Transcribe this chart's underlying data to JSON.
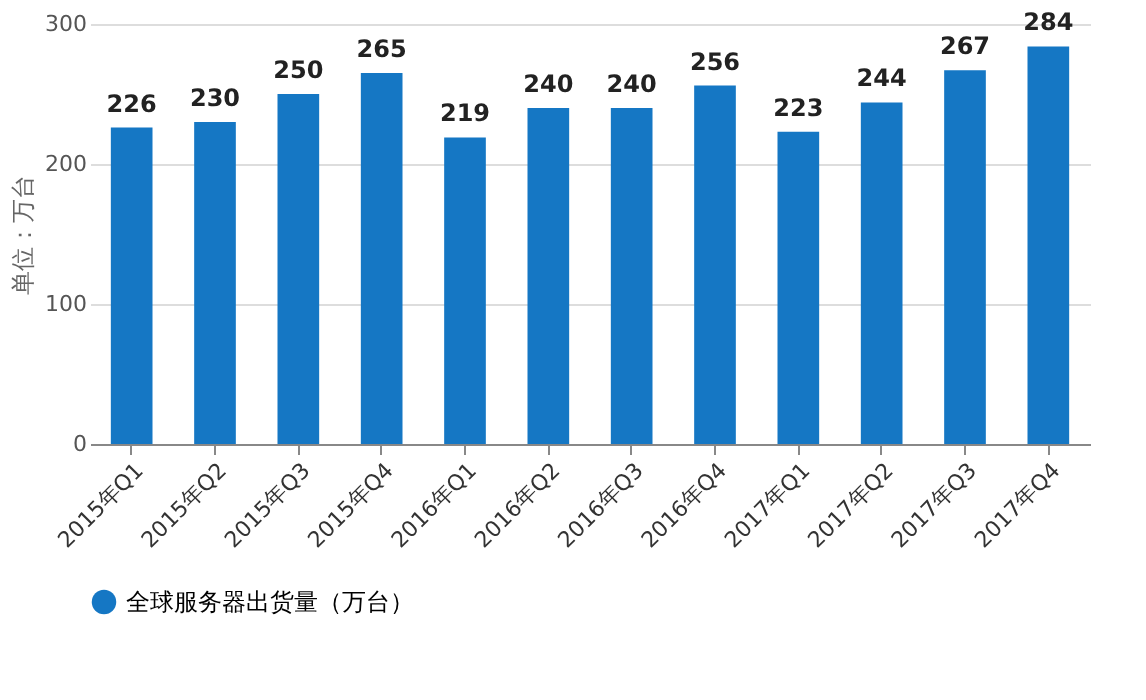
{
  "chart_data": {
    "type": "bar",
    "ylabel": "单位：万台",
    "categories": [
      "2015年Q1",
      "2015年Q2",
      "2015年Q3",
      "2015年Q4",
      "2016年Q1",
      "2016年Q2",
      "2016年Q3",
      "2016年Q4",
      "2017年Q1",
      "2017年Q2",
      "2017年Q3",
      "2017年Q4"
    ],
    "series": [
      {
        "name": "全球服务器出货量（万台）",
        "color": "#1577c4",
        "values": [
          226,
          230,
          250,
          265,
          219,
          240,
          240,
          256,
          223,
          244,
          267,
          284
        ]
      }
    ],
    "ylim": [
      0,
      300
    ],
    "yticks": [
      0,
      100,
      200,
      300
    ],
    "grid": "y",
    "legend": "bottom",
    "data_labels": true
  }
}
